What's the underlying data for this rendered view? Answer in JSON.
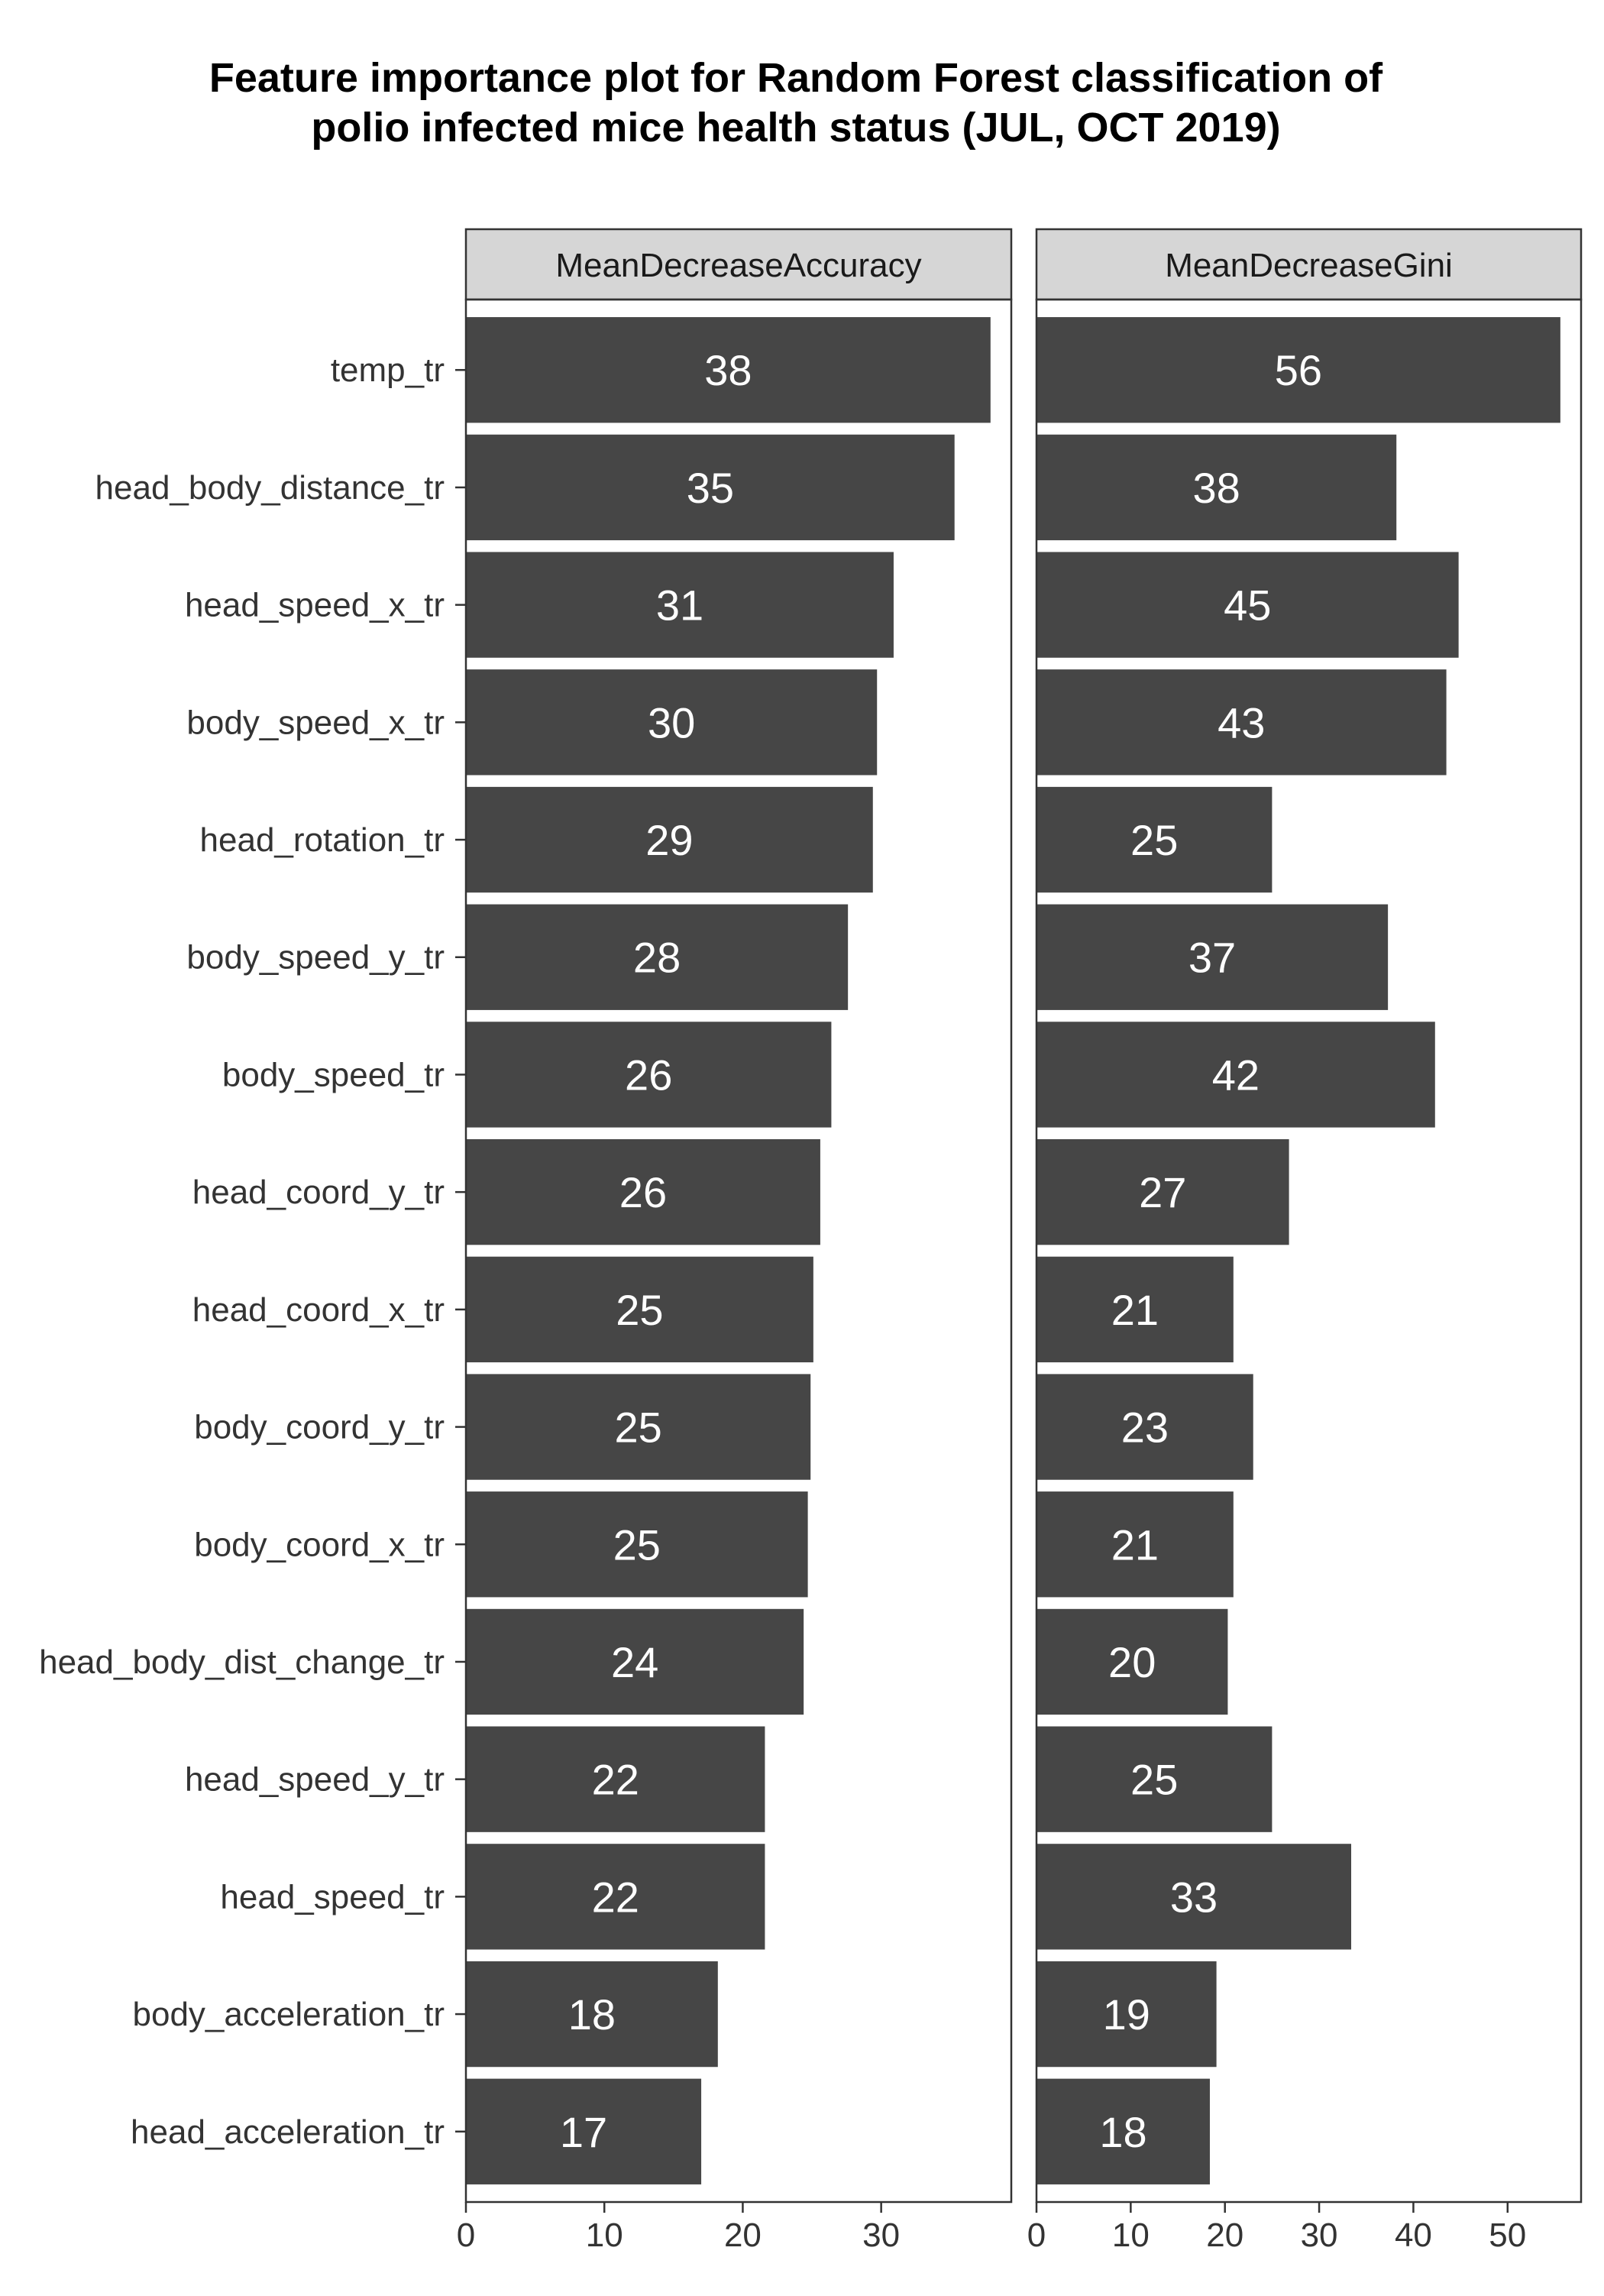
{
  "chart_data": {
    "type": "bar",
    "orientation": "horizontal",
    "title_lines": [
      "Feature importance plot for Random Forest classification of",
      "polio infected mice health status (JUL, OCT 2019)"
    ],
    "xlabel": "",
    "ylabel": "",
    "categories": [
      "temp_tr",
      "head_body_distance_tr",
      "head_speed_x_tr",
      "body_speed_x_tr",
      "head_rotation_tr",
      "body_speed_y_tr",
      "body_speed_tr",
      "head_coord_y_tr",
      "head_coord_x_tr",
      "body_coord_y_tr",
      "body_coord_x_tr",
      "head_body_dist_change_tr",
      "head_speed_y_tr",
      "head_speed_tr",
      "body_acceleration_tr",
      "head_acceleration_tr"
    ],
    "panels": [
      {
        "name": "MeanDecreaseAccuracy",
        "values": [
          37.9,
          35.3,
          30.9,
          29.7,
          29.4,
          27.6,
          26.4,
          25.6,
          25.1,
          24.9,
          24.7,
          24.4,
          21.6,
          21.6,
          18.2,
          17.0
        ],
        "labels": [
          "38",
          "35",
          "31",
          "30",
          "29",
          "28",
          "26",
          "26",
          "25",
          "25",
          "25",
          "24",
          "22",
          "22",
          "18",
          "17"
        ],
        "xlim": [
          0,
          39.4
        ],
        "ticks": [
          "0",
          "10",
          "20",
          "30"
        ]
      },
      {
        "name": "MeanDecreaseGini",
        "values": [
          55.6,
          38.2,
          44.8,
          43.5,
          25.0,
          37.3,
          42.3,
          26.8,
          20.9,
          23.0,
          20.9,
          20.3,
          25.0,
          33.4,
          19.1,
          18.4
        ],
        "labels": [
          "56",
          "38",
          "45",
          "43",
          "25",
          "37",
          "42",
          "27",
          "21",
          "23",
          "21",
          "20",
          "25",
          "33",
          "19",
          "18"
        ],
        "xlim": [
          0,
          57.8
        ],
        "ticks": [
          "0",
          "10",
          "20",
          "30",
          "40",
          "50"
        ]
      }
    ],
    "grid": false,
    "legend": "none",
    "colors": {
      "bar": "#464646",
      "bar_label": "#ffffff",
      "strip_fill": "#d6d6d6",
      "panel_border": "#333333",
      "axis_text": "#333333",
      "title": "#000000"
    }
  }
}
